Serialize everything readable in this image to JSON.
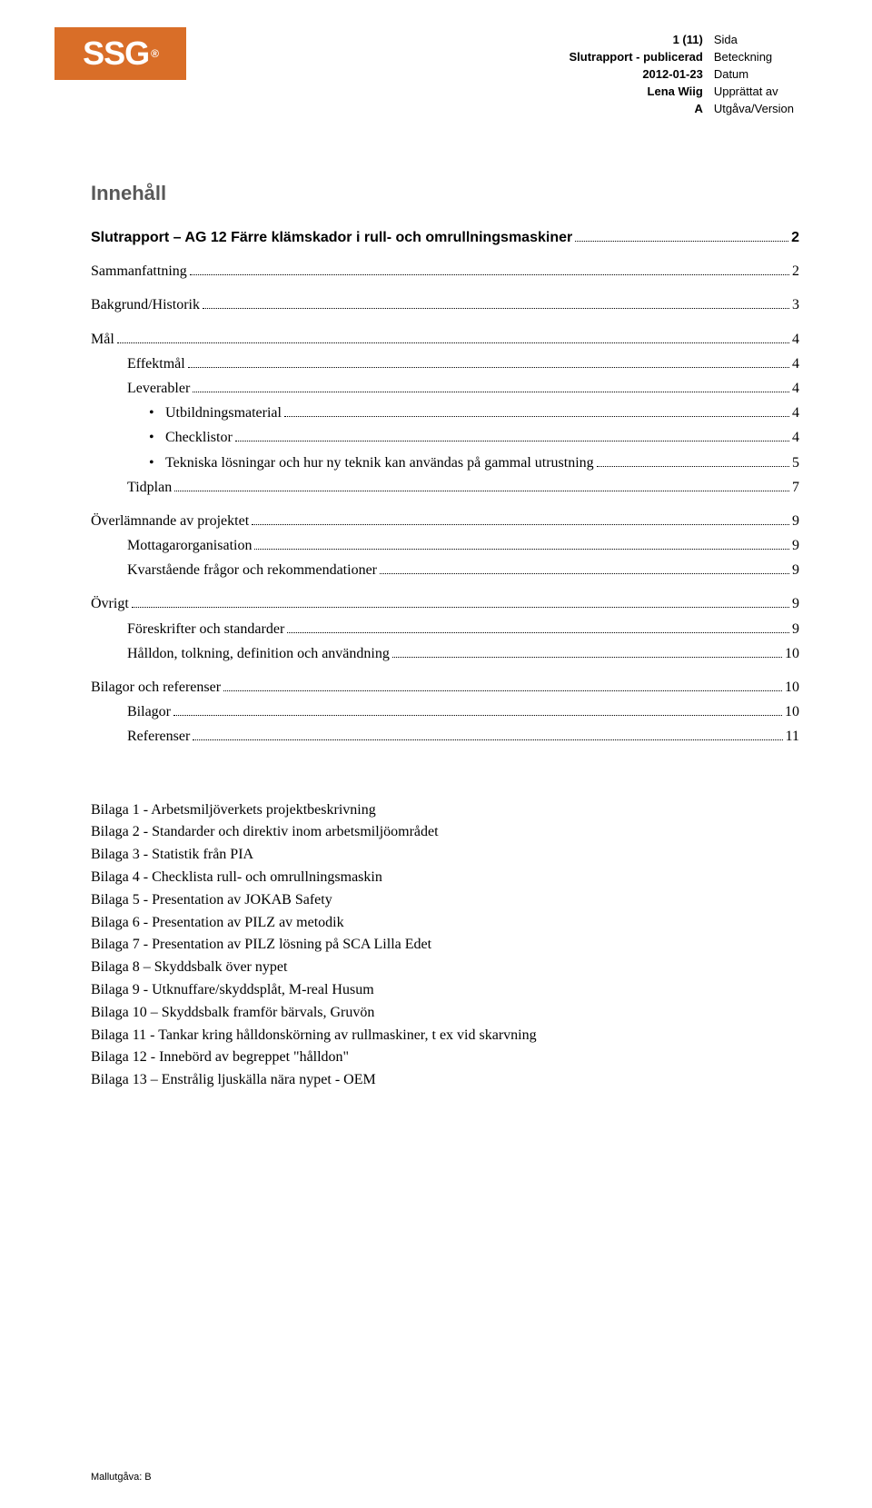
{
  "logo_text": "SSG",
  "logo_mark": "®",
  "header": {
    "page_val": "1 (11)",
    "page_lbl": "Sida",
    "doc_val": "Slutrapport - publicerad",
    "doc_lbl": "Beteckning",
    "date_val": "2012-01-23",
    "date_lbl": "Datum",
    "author_val": "Lena Wiig",
    "author_lbl": "Upprättat av",
    "ver_val": "A",
    "ver_lbl": "Utgåva/Version"
  },
  "innehall_title": "Innehåll",
  "toc": [
    {
      "label": "Slutrapport – AG 12 Färre klämskador i rull- och omrullningsmaskiner",
      "page": "2",
      "cls": "toc-row"
    },
    {
      "label": "Sammanfattning",
      "page": "2",
      "cls": "toc-row serif",
      "gap": true
    },
    {
      "label": "Bakgrund/Historik",
      "page": "3",
      "cls": "toc-row serif",
      "gap": true
    },
    {
      "label": "Mål",
      "page": "4",
      "cls": "toc-row serif",
      "gap": true
    },
    {
      "label": "Effektmål",
      "page": "4",
      "cls": "toc-row serif indent1"
    },
    {
      "label": "Leverabler",
      "page": "4",
      "cls": "toc-row serif indent1"
    },
    {
      "label": "Utbildningsmaterial",
      "page": "4",
      "cls": "toc-row serif indent2 bullet"
    },
    {
      "label": "Checklistor",
      "page": "4",
      "cls": "toc-row serif indent2 bullet"
    },
    {
      "label": "Tekniska lösningar och hur ny teknik kan användas på gammal utrustning",
      "page": "5",
      "cls": "toc-row serif indent2 bullet"
    },
    {
      "label": "Tidplan",
      "page": "7",
      "cls": "toc-row serif indent1"
    },
    {
      "label": "Överlämnande av projektet",
      "page": "9",
      "cls": "toc-row serif",
      "gap": true
    },
    {
      "label": "Mottagarorganisation",
      "page": "9",
      "cls": "toc-row serif indent1"
    },
    {
      "label": "Kvarstående frågor och rekommendationer",
      "page": "9",
      "cls": "toc-row serif indent1"
    },
    {
      "label": "Övrigt",
      "page": "9",
      "cls": "toc-row serif",
      "gap": true
    },
    {
      "label": "Föreskrifter och standarder",
      "page": "9",
      "cls": "toc-row serif indent1"
    },
    {
      "label": "Hålldon, tolkning, definition och användning",
      "page": "10",
      "cls": "toc-row serif indent1"
    },
    {
      "label": "Bilagor och referenser",
      "page": "10",
      "cls": "toc-row serif",
      "gap": true
    },
    {
      "label": "Bilagor",
      "page": "10",
      "cls": "toc-row serif indent1"
    },
    {
      "label": "Referenser",
      "page": "11",
      "cls": "toc-row serif indent1"
    }
  ],
  "appendix": [
    "Bilaga 1 - Arbetsmiljöverkets projektbeskrivning",
    "Bilaga 2 - Standarder och direktiv inom arbetsmiljöområdet",
    "Bilaga 3 - Statistik från PIA",
    "Bilaga 4 - Checklista rull- och omrullningsmaskin",
    "Bilaga 5 - Presentation av JOKAB Safety",
    "Bilaga 6 - Presentation av PILZ av metodik",
    "Bilaga 7 - Presentation av PILZ lösning på SCA Lilla Edet",
    "Bilaga 8 – Skyddsbalk över nypet",
    "Bilaga 9 - Utknuffare/skyddsplåt, M-real Husum",
    "Bilaga 10 – Skyddsbalk framför bärvals, Gruvön",
    "Bilaga 11 - Tankar kring hålldonskörning av rullmaskiner, t ex vid skarvning",
    "Bilaga 12 - Innebörd av begreppet \"hålldon\"",
    "Bilaga 13 – Enstrålig ljuskälla nära nypet - OEM"
  ],
  "footer": "Mallutgåva: B"
}
